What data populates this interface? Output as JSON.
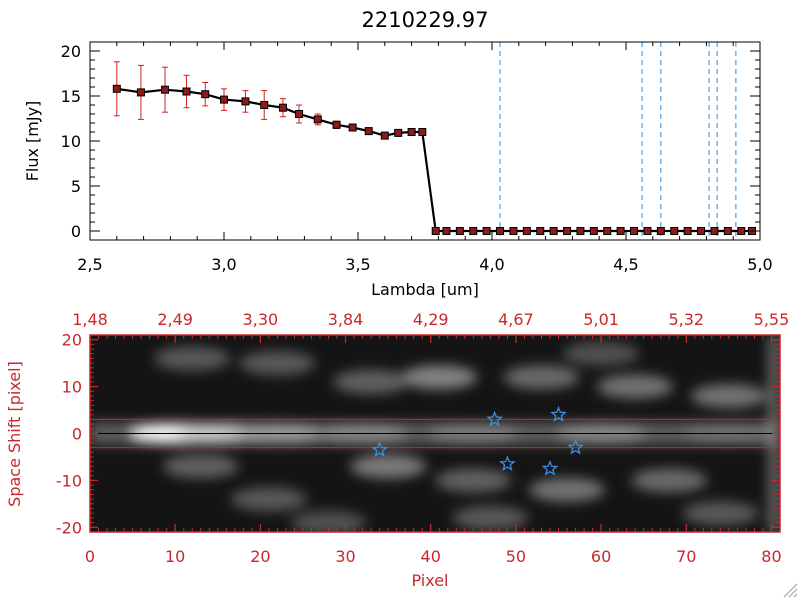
{
  "chart_data": [
    {
      "type": "line",
      "title": "2210229.97",
      "xlabel": "Lambda [um]",
      "ylabel": "Flux [mJy]",
      "xlim": [
        2.5,
        5.0
      ],
      "ylim": [
        -1,
        21
      ],
      "x_ticks": [
        2.5,
        3.0,
        3.5,
        4.0,
        4.5,
        5.0
      ],
      "x_tick_labels": [
        "2,5",
        "3,0",
        "3,5",
        "4,0",
        "4,5",
        "5,0"
      ],
      "y_ticks": [
        0,
        5,
        10,
        15,
        20
      ],
      "y_tick_labels": [
        "0",
        "5",
        "10",
        "15",
        "20"
      ],
      "series": [
        {
          "name": "flux",
          "x": [
            2.6,
            2.69,
            2.78,
            2.86,
            2.93,
            3.0,
            3.08,
            3.15,
            3.22,
            3.28,
            3.35,
            3.42,
            3.48,
            3.54,
            3.6,
            3.65,
            3.7,
            3.74,
            3.79,
            3.83,
            3.88,
            3.93,
            3.98,
            4.03,
            4.08,
            4.13,
            4.18,
            4.23,
            4.28,
            4.33,
            4.38,
            4.43,
            4.48,
            4.53,
            4.58,
            4.63,
            4.68,
            4.73,
            4.78,
            4.83,
            4.88,
            4.93,
            4.97
          ],
          "y": [
            15.8,
            15.4,
            15.7,
            15.5,
            15.2,
            14.6,
            14.4,
            14.0,
            13.7,
            13.0,
            12.4,
            11.8,
            11.5,
            11.1,
            10.6,
            10.9,
            11.0,
            11.0,
            0,
            0,
            0,
            0,
            0,
            0,
            0,
            0,
            0,
            0,
            0,
            0,
            0,
            0,
            0,
            0,
            0,
            0,
            0,
            0,
            0,
            0,
            0,
            0,
            0
          ],
          "err": [
            3.0,
            3.0,
            2.5,
            1.8,
            1.3,
            1.2,
            1.2,
            1.6,
            1.0,
            1.0,
            0.6,
            0.4,
            0.3,
            0.3,
            0.3,
            0.3,
            0.3,
            0.3,
            0,
            0,
            0,
            0,
            0,
            0,
            0,
            0,
            0,
            0,
            0,
            0,
            0,
            0,
            0,
            0,
            0,
            0,
            0,
            0,
            0,
            0,
            0,
            0,
            0
          ]
        }
      ],
      "vertical_lines": [
        4.03,
        4.56,
        4.63,
        4.81,
        4.84,
        4.91
      ]
    },
    {
      "type": "heatmap",
      "xlabel": "Pixel",
      "ylabel": "Space Shift [pixel]",
      "xlim": [
        0,
        81
      ],
      "ylim": [
        -21,
        21
      ],
      "x_ticks": [
        0,
        10,
        20,
        30,
        40,
        50,
        60,
        70,
        80
      ],
      "x_tick_labels": [
        "0",
        "10",
        "20",
        "30",
        "40",
        "50",
        "60",
        "70",
        "80"
      ],
      "y_ticks": [
        -20,
        -10,
        0,
        10,
        20
      ],
      "y_tick_labels": [
        "-20",
        "-10",
        "0",
        "10",
        "20"
      ],
      "top_axis_ticks": [
        0,
        10,
        20,
        30,
        40,
        50,
        60,
        70,
        80
      ],
      "top_axis_labels": [
        "1,48",
        "2,49",
        "3,30",
        "3,84",
        "4,29",
        "4,67",
        "5,01",
        "5,32",
        "5,55"
      ],
      "extraction_lines_y": [
        -3,
        3
      ],
      "center_line_y": 0,
      "markers": [
        {
          "x": 34,
          "y": -3.5
        },
        {
          "x": 47.5,
          "y": 3
        },
        {
          "x": 49,
          "y": -6.5
        },
        {
          "x": 54,
          "y": -7.5
        },
        {
          "x": 55,
          "y": 4
        },
        {
          "x": 57,
          "y": -3
        }
      ],
      "features": [
        {
          "x": 10,
          "y": 0,
          "intensity": 1.0
        },
        {
          "x": 15,
          "y": 0,
          "intensity": 0.75
        },
        {
          "x": 22,
          "y": 0,
          "intensity": 0.55
        },
        {
          "x": 32,
          "y": 0,
          "intensity": 0.45
        },
        {
          "x": 45,
          "y": 0,
          "intensity": 0.4
        },
        {
          "x": 60,
          "y": 0,
          "intensity": 0.45
        },
        {
          "x": 75,
          "y": 0,
          "intensity": 0.35
        },
        {
          "x": 41,
          "y": 12,
          "intensity": 0.55
        },
        {
          "x": 33,
          "y": 11,
          "intensity": 0.35
        },
        {
          "x": 53,
          "y": 12,
          "intensity": 0.4
        },
        {
          "x": 64,
          "y": 10,
          "intensity": 0.45
        },
        {
          "x": 75,
          "y": 8,
          "intensity": 0.45
        },
        {
          "x": 12,
          "y": 16,
          "intensity": 0.3
        },
        {
          "x": 22,
          "y": 15,
          "intensity": 0.3
        },
        {
          "x": 35,
          "y": -7,
          "intensity": 0.5
        },
        {
          "x": 45,
          "y": -10,
          "intensity": 0.35
        },
        {
          "x": 56,
          "y": -12,
          "intensity": 0.45
        },
        {
          "x": 68,
          "y": -10,
          "intensity": 0.4
        },
        {
          "x": 13,
          "y": -7,
          "intensity": 0.35
        },
        {
          "x": 21,
          "y": -14,
          "intensity": 0.3
        },
        {
          "x": 47,
          "y": -18,
          "intensity": 0.3
        },
        {
          "x": 28,
          "y": -19,
          "intensity": 0.25
        },
        {
          "x": 60,
          "y": 17,
          "intensity": 0.25
        },
        {
          "x": 74,
          "y": -17,
          "intensity": 0.3
        }
      ]
    }
  ],
  "colors": {
    "line": "#000000",
    "error": "#cc2222",
    "marker_fill": "#8b1a1a",
    "dashed": "#2a8fd6",
    "red_axis": "#c8282d",
    "star": "#3a8fe8"
  }
}
